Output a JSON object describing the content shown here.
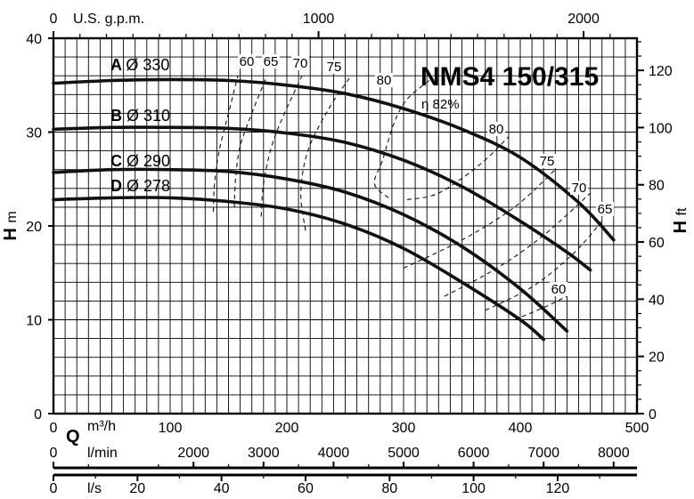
{
  "chart_data": {
    "type": "line",
    "title": "NMS4 150/315",
    "x": {
      "unit": "m³/h",
      "label": "Q",
      "range": [
        0,
        500
      ],
      "ticks": [
        0,
        100,
        200,
        300,
        400,
        500
      ]
    },
    "x_secondary": [
      {
        "unit": "U.S. g.p.m.",
        "ticks": [
          0,
          1000,
          2000
        ]
      },
      {
        "unit": "l/min",
        "ticks": [
          0,
          2000,
          3000,
          4000,
          5000,
          6000,
          7000,
          8000
        ]
      },
      {
        "unit": "l/s",
        "ticks": [
          0,
          20,
          40,
          60,
          80,
          100,
          120
        ]
      }
    ],
    "y": {
      "label": "H",
      "unit": "m",
      "range": [
        0,
        40
      ],
      "ticks": [
        0,
        10,
        20,
        30,
        40
      ]
    },
    "y_secondary": {
      "label": "H",
      "unit": "ft",
      "ticks": [
        0,
        20,
        40,
        60,
        80,
        100,
        120
      ]
    },
    "series": [
      {
        "letter": "A",
        "name": "Ø 330",
        "x": [
          0,
          50,
          100,
          150,
          200,
          250,
          300,
          350,
          400,
          450,
          480
        ],
        "y": [
          35.2,
          35.5,
          35.6,
          35.5,
          35.0,
          34.1,
          32.5,
          30.3,
          27.3,
          22.5,
          18.5
        ]
      },
      {
        "letter": "B",
        "name": "Ø 310",
        "x": [
          0,
          50,
          100,
          150,
          200,
          250,
          300,
          350,
          400,
          440,
          460
        ],
        "y": [
          30.3,
          30.5,
          30.5,
          30.4,
          29.9,
          28.9,
          27.0,
          24.2,
          20.5,
          17.2,
          15.3
        ]
      },
      {
        "letter": "C",
        "name": "Ø 290",
        "x": [
          0,
          50,
          100,
          150,
          200,
          250,
          300,
          350,
          400,
          440
        ],
        "y": [
          25.7,
          26.0,
          26.0,
          25.8,
          25.0,
          23.6,
          21.2,
          17.8,
          13.3,
          8.8
        ]
      },
      {
        "letter": "D",
        "name": "Ø 278",
        "x": [
          0,
          50,
          100,
          150,
          200,
          250,
          300,
          350,
          400,
          420
        ],
        "y": [
          22.8,
          23.0,
          23.0,
          22.6,
          21.8,
          20.2,
          17.6,
          14.0,
          10.0,
          7.9
        ]
      }
    ],
    "efficiency_contours": [
      {
        "label": "60",
        "x": [
          137,
          138,
          142,
          150,
          158
        ],
        "y": [
          21.5,
          24.5,
          28,
          32,
          36
        ]
      },
      {
        "label": "65",
        "x": [
          155,
          156,
          160,
          170,
          183
        ],
        "y": [
          22,
          25,
          28.5,
          32,
          36
        ]
      },
      {
        "label": "70",
        "x": [
          178,
          180,
          187,
          198,
          213
        ],
        "y": [
          21,
          24.5,
          28.5,
          32,
          36
        ]
      },
      {
        "label": "75",
        "x": [
          216,
          212,
          218,
          236,
          255
        ],
        "y": [
          19.5,
          23.5,
          28,
          32.5,
          36
        ]
      },
      {
        "label": "80",
        "x": [
          287,
          275,
          282,
          292,
          303,
          322
        ],
        "y": [
          23,
          24.5,
          27,
          31,
          33.5,
          35.5
        ]
      },
      {
        "label": "80",
        "x": [
          303,
          330,
          365,
          390
        ],
        "y": [
          22.8,
          23.5,
          26.5,
          29.5
        ]
      },
      {
        "label": "75",
        "x": [
          300,
          350,
          395,
          430
        ],
        "y": [
          15.5,
          18.5,
          22,
          26
        ]
      },
      {
        "label": "70",
        "x": [
          335,
          380,
          420,
          460
        ],
        "y": [
          12.5,
          15.5,
          19,
          23.5
        ]
      },
      {
        "label": "65",
        "x": [
          370,
          410,
          445,
          470
        ],
        "y": [
          11,
          13.5,
          17,
          20.5
        ]
      },
      {
        "label": "60",
        "x": [
          395,
          420,
          440
        ],
        "y": [
          10,
          11.3,
          12.5
        ]
      }
    ],
    "annotation": "η 82%",
    "grid": true
  }
}
